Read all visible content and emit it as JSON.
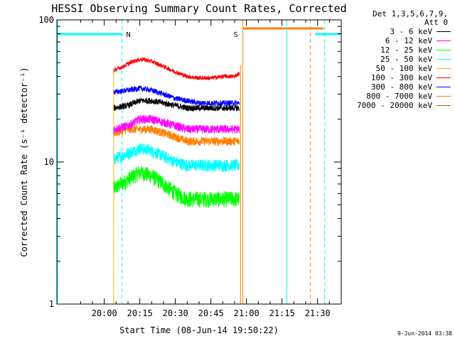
{
  "chart_data": {
    "type": "line",
    "title": "HESSI Observing Summary Count Rates, Corrected",
    "xlabel": "Start Time (08-Jun-14 19:50:22)",
    "ylabel": "Corrected Count Rate (s⁻¹ detector⁻¹)",
    "ylog": true,
    "ylim": [
      1,
      100
    ],
    "xlim_minutes": [
      -20,
      100
    ],
    "x_ticks": [
      "20:00",
      "20:15",
      "20:30",
      "20:45",
      "21:00",
      "21:15",
      "21:30"
    ],
    "x_tick_minutes": [
      0,
      15,
      30,
      45,
      60,
      75,
      90
    ],
    "y_ticks": [
      "1",
      "10",
      "100"
    ],
    "legend_header": [
      "Det 1,3,5,6,7,9,",
      "Att 0"
    ],
    "data_start_minute": 4,
    "data_end_minute": 57.5,
    "series": [
      {
        "name": "3 - 6 keV",
        "color": "#000000",
        "x": [
          4,
          10,
          15,
          20,
          25,
          30,
          35,
          40,
          45,
          50,
          55,
          57
        ],
        "y": [
          24,
          25,
          27,
          27,
          26,
          25,
          24,
          24,
          24,
          24,
          24,
          24
        ]
      },
      {
        "name": "6 - 12 keV",
        "color": "#ff00ff",
        "x": [
          4,
          10,
          15,
          20,
          25,
          30,
          35,
          40,
          45,
          50,
          55,
          57
        ],
        "y": [
          17,
          18,
          20,
          20,
          19,
          18,
          17,
          17,
          17,
          17,
          17,
          17
        ]
      },
      {
        "name": "12 - 25 keV",
        "color": "#00ff00",
        "x": [
          4,
          10,
          15,
          20,
          25,
          30,
          35,
          40,
          45,
          50,
          55,
          57
        ],
        "y": [
          6.5,
          7.5,
          8.5,
          8,
          7,
          6,
          5.5,
          5.5,
          5.5,
          5.5,
          5.5,
          5.5
        ]
      },
      {
        "name": "25 - 50 keV",
        "color": "#00ffff",
        "x": [
          4,
          10,
          15,
          20,
          25,
          30,
          35,
          40,
          45,
          50,
          55,
          57
        ],
        "y": [
          10.5,
          11.5,
          12.5,
          12,
          11,
          10,
          9.5,
          9.5,
          9.5,
          9.5,
          9.5,
          9.5
        ]
      },
      {
        "name": "50 - 100 keV",
        "color": "#ffb000",
        "x": [],
        "y": []
      },
      {
        "name": "100 - 300 keV",
        "color": "#ff0000",
        "x": [
          4,
          8,
          12,
          16,
          20,
          25,
          30,
          35,
          40,
          45,
          50,
          55,
          57
        ],
        "y": [
          44,
          47,
          51,
          53,
          51,
          47,
          43,
          40,
          39,
          39,
          40,
          40,
          42
        ]
      },
      {
        "name": "300 - 800 keV",
        "color": "#0000ff",
        "x": [
          4,
          10,
          15,
          20,
          25,
          30,
          35,
          40,
          45,
          50,
          55,
          57
        ],
        "y": [
          31,
          32,
          33,
          32,
          30,
          28,
          27,
          26,
          26,
          26,
          26,
          26
        ]
      },
      {
        "name": "800 - 7000 keV",
        "color": "#ff8000",
        "x": [
          4,
          10,
          15,
          20,
          25,
          30,
          35,
          40,
          45,
          50,
          55,
          57
        ],
        "y": [
          16,
          17,
          17,
          17,
          16,
          15,
          14,
          14,
          14,
          14,
          14,
          14
        ]
      },
      {
        "name": "7000 - 20000 keV",
        "color": "#a06000",
        "x": [],
        "y": []
      }
    ],
    "markers": [
      {
        "label": "N",
        "color": "#00ffff",
        "minute": 7.5
      },
      {
        "label": "S",
        "color": "#ff8000",
        "minute": 58.5
      }
    ]
  },
  "footer": {
    "timestamp": "9-Jun-2014 03:38"
  }
}
